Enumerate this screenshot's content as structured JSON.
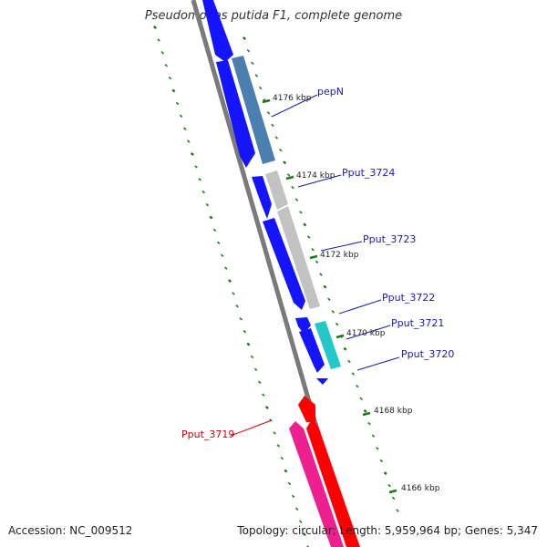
{
  "header": {
    "title": "Pseudomonas putida F1, complete genome"
  },
  "footer": {
    "accession": "Accession: NC_009512",
    "summary": "Topology: circular; Length: 5,959,964 bp; Genes: 5,347"
  },
  "colors": {
    "backbone": "#7a7a7a",
    "forward_cds": "#1414ff",
    "tick": "#1a7a1a",
    "label_blue": "#1a1ab0",
    "label_red": "#d40000"
  },
  "ticks": [
    {
      "label": "4176 kbp"
    },
    {
      "label": "4174 kbp"
    },
    {
      "label": "4172 kbp"
    },
    {
      "label": "4170 kbp"
    },
    {
      "label": "4168 kbp"
    },
    {
      "label": "4166 kbp"
    }
  ],
  "genes": [
    {
      "label": "pepN",
      "color": "#4a7fb0",
      "label_color": "#1a1ab0"
    },
    {
      "label": "Pput_3724",
      "color": "#c2c2c2",
      "label_color": "#1a1ab0"
    },
    {
      "label": "Pput_3723",
      "color": "#c2c2c2",
      "label_color": "#1a1ab0"
    },
    {
      "label": "Pput_3722",
      "color": "#1414ff",
      "label_color": "#1a1ab0"
    },
    {
      "label": "Pput_3721",
      "color": "#22c8c8",
      "label_color": "#1a1ab0"
    },
    {
      "label": "Pput_3720",
      "color": "#1414ff",
      "label_color": "#1a1ab0"
    },
    {
      "label": "Pput_3719",
      "color": "#ee2090",
      "label_color": "#d40000"
    }
  ]
}
